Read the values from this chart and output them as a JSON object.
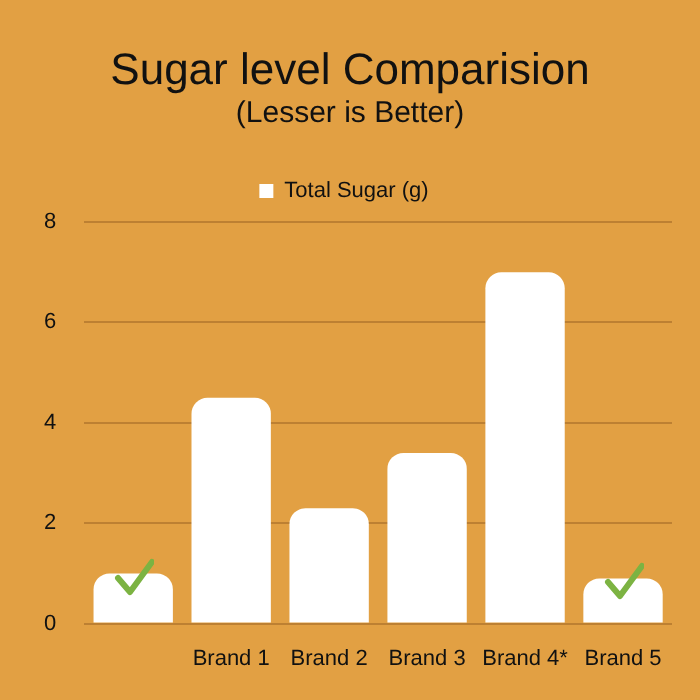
{
  "chart_data": {
    "type": "bar",
    "title": "Sugar level Comparision",
    "subtitle": "(Lesser is Better)",
    "categories": [
      null,
      "Brand 1",
      "Brand 2",
      "Brand 3",
      "Brand 4*",
      "Brand 5"
    ],
    "series": [
      {
        "name": "Total Sugar (g)",
        "color": "#ffffff",
        "values": [
          1.0,
          4.5,
          2.3,
          3.4,
          7.0,
          0.9
        ]
      }
    ],
    "ylim": [
      0,
      8
    ],
    "yticks": [
      0,
      2,
      4,
      6,
      8
    ],
    "grid": "y",
    "legend": "top"
  }
}
